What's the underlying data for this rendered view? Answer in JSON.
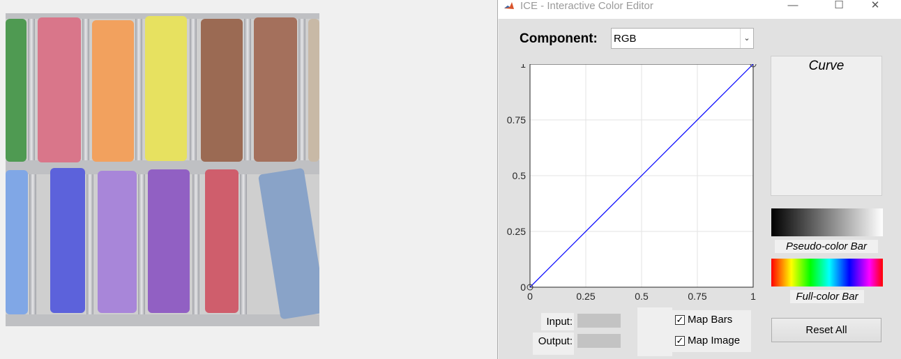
{
  "window": {
    "title": "ICE - Interactive Color Editor",
    "controls": [
      "minimize-icon",
      "maximize-icon",
      "close-icon"
    ]
  },
  "component": {
    "label": "Component:",
    "value": "RGB"
  },
  "chart_data": {
    "type": "line",
    "x": [
      0,
      1
    ],
    "series": [
      {
        "values": [
          0,
          1
        ],
        "color": "#0000ff"
      }
    ],
    "control_points": [
      [
        0,
        0
      ],
      [
        1,
        1
      ]
    ],
    "xlim": [
      0,
      1
    ],
    "ylim": [
      0,
      1
    ],
    "xticks": [
      "0",
      "0.25",
      "0.5",
      "0.75",
      "1"
    ],
    "yticks": [
      "0",
      "0.25",
      "0.5",
      "0.75",
      "1"
    ],
    "grid": true
  },
  "panels": {
    "curve_title": "Curve",
    "pseudo_label": "Pseudo-color Bar",
    "full_label": "Full-color Bar"
  },
  "fields": {
    "input_label": "Input:",
    "output_label": "Output:"
  },
  "checkboxes": {
    "map_bars": {
      "label": "Map Bars",
      "checked": true
    },
    "map_image": {
      "label": "Map Image",
      "checked": true
    }
  },
  "buttons": {
    "reset_label": "Reset All"
  }
}
